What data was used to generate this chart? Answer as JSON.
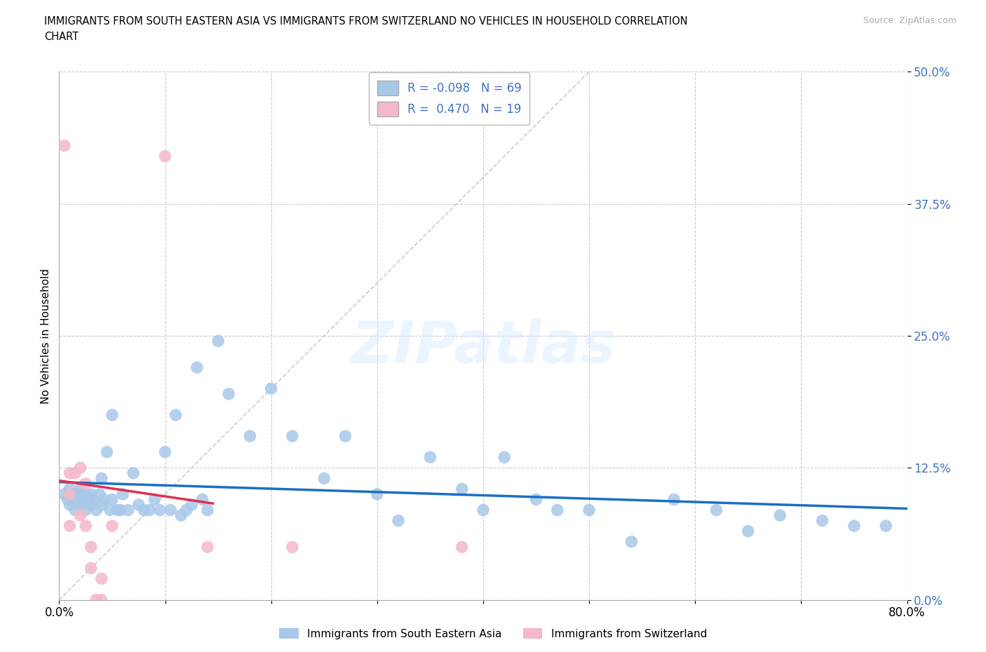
{
  "title_line1": "IMMIGRANTS FROM SOUTH EASTERN ASIA VS IMMIGRANTS FROM SWITZERLAND NO VEHICLES IN HOUSEHOLD CORRELATION",
  "title_line2": "CHART",
  "source": "Source: ZipAtlas.com",
  "ylabel": "No Vehicles in Household",
  "watermark": "ZIPatlas",
  "legend_label_blue": "Immigrants from South Eastern Asia",
  "legend_label_pink": "Immigrants from Switzerland",
  "R_blue": -0.098,
  "N_blue": 69,
  "R_pink": 0.47,
  "N_pink": 19,
  "xlim": [
    0.0,
    0.8
  ],
  "ylim": [
    0.0,
    0.5
  ],
  "xticks": [
    0.0,
    0.1,
    0.2,
    0.3,
    0.4,
    0.5,
    0.6,
    0.7,
    0.8
  ],
  "yticks": [
    0.0,
    0.125,
    0.25,
    0.375,
    0.5
  ],
  "ytick_labels": [
    "0.0%",
    "12.5%",
    "25.0%",
    "37.5%",
    "50.0%"
  ],
  "xtick_labels": [
    "0.0%",
    "",
    "",
    "",
    "",
    "",
    "",
    "",
    "80.0%"
  ],
  "color_blue": "#a8c8e8",
  "color_pink": "#f4b8c8",
  "line_color_blue": "#1a6fc4",
  "line_color_pink": "#e0304e",
  "label_color_blue": "#4472c4",
  "background_color": "#ffffff",
  "blue_x": [
    0.005,
    0.008,
    0.01,
    0.01,
    0.012,
    0.015,
    0.015,
    0.018,
    0.02,
    0.02,
    0.022,
    0.025,
    0.025,
    0.028,
    0.03,
    0.03,
    0.032,
    0.035,
    0.038,
    0.04,
    0.04,
    0.042,
    0.045,
    0.048,
    0.05,
    0.05,
    0.055,
    0.058,
    0.06,
    0.065,
    0.07,
    0.075,
    0.08,
    0.085,
    0.09,
    0.095,
    0.1,
    0.105,
    0.11,
    0.115,
    0.12,
    0.125,
    0.13,
    0.135,
    0.14,
    0.15,
    0.16,
    0.18,
    0.2,
    0.22,
    0.25,
    0.27,
    0.3,
    0.32,
    0.35,
    0.38,
    0.4,
    0.42,
    0.45,
    0.47,
    0.5,
    0.54,
    0.58,
    0.62,
    0.65,
    0.68,
    0.72,
    0.75,
    0.78
  ],
  "blue_y": [
    0.1,
    0.095,
    0.105,
    0.09,
    0.1,
    0.095,
    0.085,
    0.1,
    0.09,
    0.105,
    0.095,
    0.1,
    0.085,
    0.095,
    0.1,
    0.09,
    0.095,
    0.085,
    0.1,
    0.115,
    0.09,
    0.095,
    0.14,
    0.085,
    0.095,
    0.175,
    0.085,
    0.085,
    0.1,
    0.085,
    0.12,
    0.09,
    0.085,
    0.085,
    0.095,
    0.085,
    0.14,
    0.085,
    0.175,
    0.08,
    0.085,
    0.09,
    0.22,
    0.095,
    0.085,
    0.245,
    0.195,
    0.155,
    0.2,
    0.155,
    0.115,
    0.155,
    0.1,
    0.075,
    0.135,
    0.105,
    0.085,
    0.135,
    0.095,
    0.085,
    0.085,
    0.055,
    0.095,
    0.085,
    0.065,
    0.08,
    0.075,
    0.07,
    0.07
  ],
  "pink_x": [
    0.005,
    0.01,
    0.01,
    0.01,
    0.015,
    0.02,
    0.02,
    0.025,
    0.025,
    0.03,
    0.03,
    0.035,
    0.04,
    0.04,
    0.05,
    0.1,
    0.14,
    0.22,
    0.38
  ],
  "pink_y": [
    0.43,
    0.12,
    0.07,
    0.1,
    0.12,
    0.08,
    0.125,
    0.11,
    0.07,
    0.05,
    0.03,
    0.0,
    0.02,
    0.0,
    0.07,
    0.42,
    0.05,
    0.05,
    0.05
  ]
}
